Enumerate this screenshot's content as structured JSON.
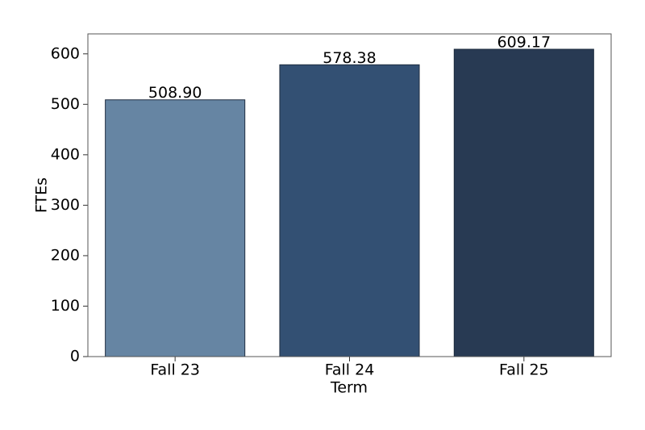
{
  "chart_data": {
    "type": "bar",
    "categories": [
      "Fall 23",
      "Fall 24",
      "Fall 25"
    ],
    "values": [
      508.9,
      578.38,
      609.17
    ],
    "value_labels": [
      "508.90",
      "578.38",
      "609.17"
    ],
    "colors": [
      "#6685a3",
      "#335073",
      "#283a53"
    ],
    "x_label": "Term",
    "y_label": "FTEs",
    "ylim": [
      0,
      639.6
    ],
    "yticks": [
      0,
      100,
      200,
      300,
      400,
      500,
      600
    ],
    "grid": false
  }
}
